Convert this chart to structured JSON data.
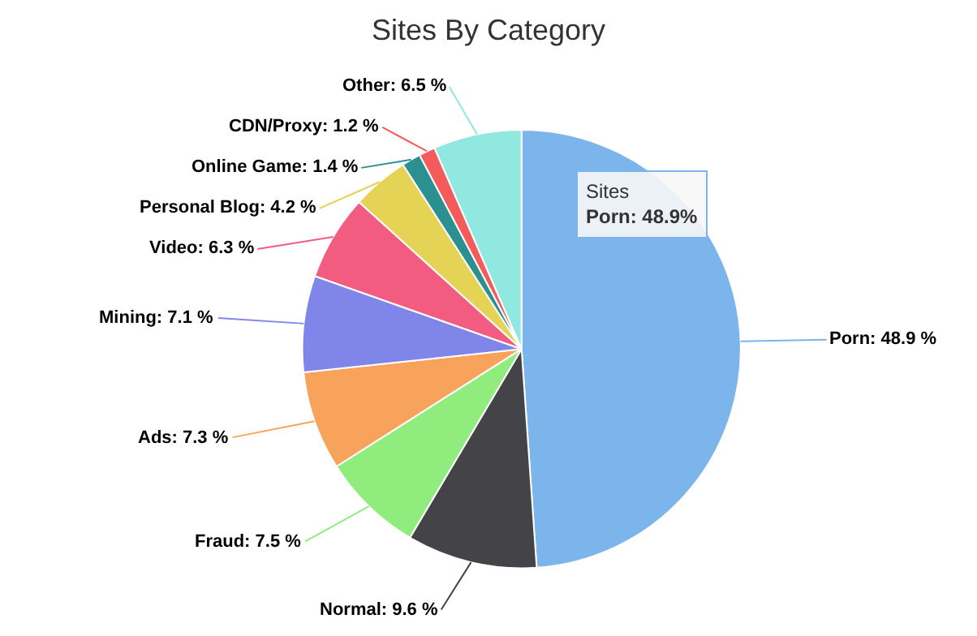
{
  "chart_data": {
    "type": "pie",
    "title": "Sites By Category",
    "categories": [
      "Porn",
      "Normal",
      "Fraud",
      "Ads",
      "Mining",
      "Video",
      "Personal Blog",
      "Online Game",
      "CDN/Proxy",
      "Other"
    ],
    "values": [
      48.9,
      9.6,
      7.5,
      7.3,
      7.1,
      6.3,
      4.2,
      1.4,
      1.2,
      6.5
    ],
    "value_labels": [
      "48.9 %",
      "9.6 %",
      "7.5 %",
      "7.3 %",
      "7.1 %",
      "6.3 %",
      "4.2 %",
      "1.4 %",
      "1.2 %",
      "6.5 %"
    ],
    "colors": [
      "#7cb5ec",
      "#434348",
      "#90ed7d",
      "#f7a35c",
      "#8085e9",
      "#f15c80",
      "#e4d354",
      "#2b908f",
      "#f45b5b",
      "#91e8e1"
    ],
    "annotations": [
      "Sites",
      "Porn: 48.9%"
    ],
    "legend": false
  }
}
